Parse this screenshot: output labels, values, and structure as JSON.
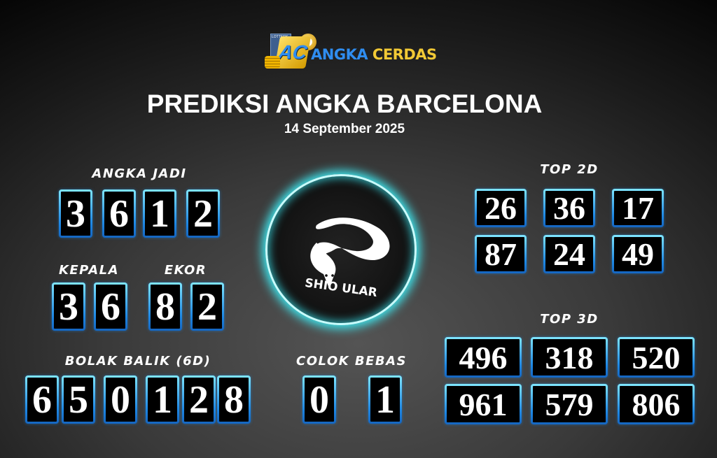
{
  "logo": {
    "text_1": "ANGKA",
    "text_2": "CERDAS",
    "badge": "AC",
    "ticket_text": "LOTTERY",
    "ball_number": "3"
  },
  "title": "PREDIKSI ANGKA BARCELONA",
  "date": "14 September 2025",
  "angka_jadi": {
    "label": "ANGKA JADI",
    "digits": [
      "3",
      "6",
      "1",
      "2"
    ]
  },
  "kepala": {
    "label": "KEPALA",
    "digits": [
      "3",
      "6"
    ]
  },
  "ekor": {
    "label": "EKOR",
    "digits": [
      "8",
      "2"
    ]
  },
  "bolak_balik": {
    "label": "BOLAK BALIK (6D)",
    "digits": [
      "6",
      "5",
      "0",
      "1",
      "2",
      "8"
    ]
  },
  "colok_bebas": {
    "label": "COLOK BEBAS",
    "digits": [
      "0",
      "1"
    ]
  },
  "shio": {
    "label": "SHIO ULAR",
    "icon": "snake-icon"
  },
  "top2d": {
    "label": "TOP 2D",
    "numbers": [
      "26",
      "36",
      "17",
      "87",
      "24",
      "49"
    ]
  },
  "top3d": {
    "label": "TOP 3D",
    "numbers": [
      "496",
      "318",
      "520",
      "961",
      "579",
      "806"
    ]
  },
  "colors": {
    "box_border": "#1e88e5",
    "glow": "#5ff0ff",
    "logo_yellow": "#f2c935",
    "logo_blue": "#2f8df0"
  }
}
